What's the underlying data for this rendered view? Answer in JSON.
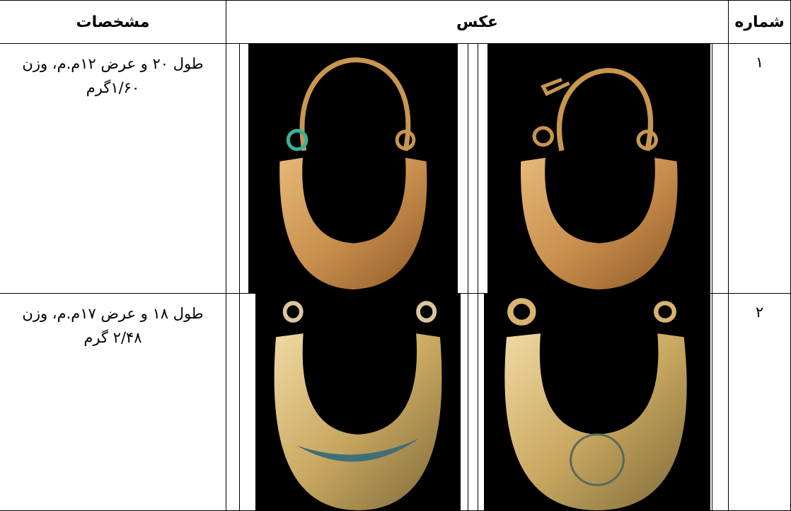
{
  "table": {
    "header": [
      "شماره",
      "عکس",
      "مشخصات"
    ],
    "rows": [
      [
        "۱",
        "طول ۲۰ و عرض ۱۲م.م، وزن ۱/۶۰گرم"
      ],
      [
        "۲",
        "طول ۱۸ و عرض ۱۷م.م، وزن ۲/۴۸ گرم"
      ]
    ]
  }
}
